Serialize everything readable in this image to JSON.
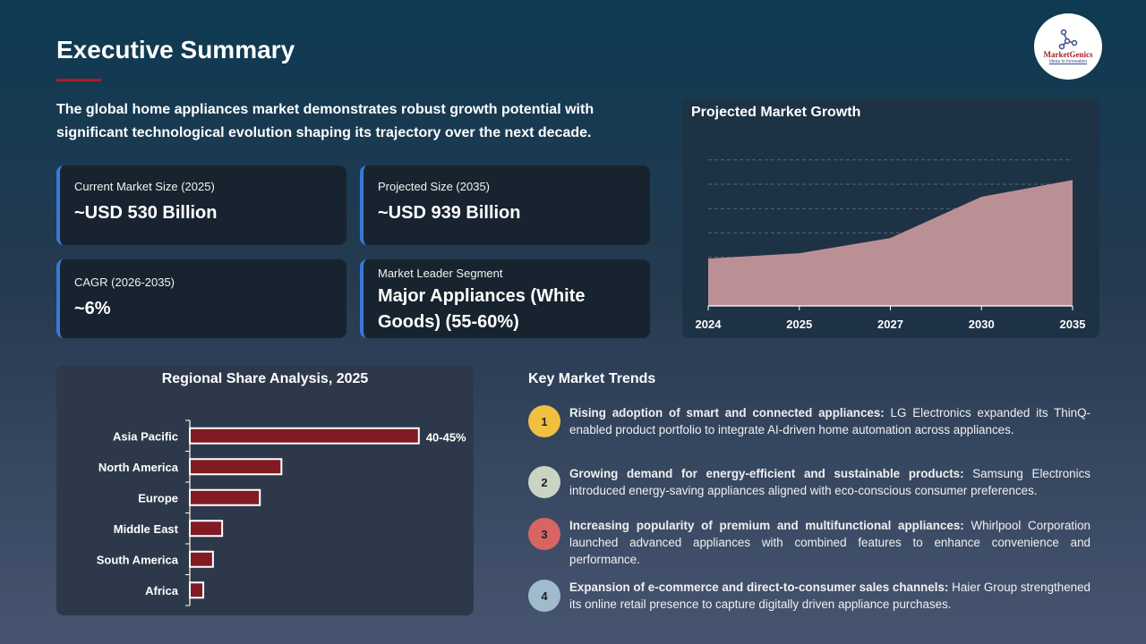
{
  "header": {
    "title": "Executive Summary",
    "intro": "The global home appliances market demonstrates robust growth potential with significant technological evolution shaping its trajectory over the next decade.",
    "logo": {
      "name": "MarketGenics",
      "tagline": "Ideas to Innovation"
    }
  },
  "cards": [
    {
      "label": "Current Market Size (2025)",
      "value": "~USD 530 Billion"
    },
    {
      "label": "Projected Size (2035)",
      "value": "~USD 939 Billion"
    },
    {
      "label": "CAGR (2026-2035)",
      "value": "~6%"
    },
    {
      "label": "Market Leader Segment",
      "value": "Major Appliances (White Goods) (55-60%)"
    }
  ],
  "trends_title": "Key Market Trends",
  "trends": [
    {
      "num": "1",
      "color": "#f0c040",
      "bold": "Rising adoption of smart and connected appliances:",
      "text": " LG Electronics expanded its ThinQ-enabled product portfolio to integrate AI-driven home automation across appliances."
    },
    {
      "num": "2",
      "color": "#c9d4c4",
      "bold": "Growing demand for energy-efficient and sustainable products:",
      "text": " Samsung Electronics introduced energy-saving appliances aligned with eco-conscious consumer preferences."
    },
    {
      "num": "3",
      "color": "#d86464",
      "bold": "Increasing popularity of premium and multifunctional appliances:",
      "text": " Whirlpool Corporation launched advanced appliances with combined features to enhance convenience and performance."
    },
    {
      "num": "4",
      "color": "#9fbbcc",
      "bold": "Expansion of e-commerce and direct-to-consumer sales channels:",
      "text": " Haier Group strengthened its online retail presence to capture digitally driven appliance purchases."
    }
  ],
  "chart_data": [
    {
      "type": "area",
      "title": "Projected Market Growth",
      "categories": [
        "2024",
        "2025",
        "2027",
        "2030",
        "2035"
      ],
      "values": [
        500,
        530,
        615,
        845,
        939
      ],
      "unit": "USD Billion",
      "ylim": [
        236,
        1050
      ],
      "grid": true,
      "gridlines": 6,
      "color": "#bb9095"
    },
    {
      "type": "bar",
      "orientation": "horizontal",
      "title": "Regional Share Analysis, 2025",
      "categories": [
        "Asia Pacific",
        "North America",
        "Europe",
        "Middle East",
        "South America",
        "Africa"
      ],
      "values": [
        42.5,
        17,
        13,
        6,
        4.3,
        2.5
      ],
      "unit": "%",
      "data_labels": [
        "40-45%",
        "",
        "",
        "",
        "",
        ""
      ],
      "xlim": [
        0,
        52
      ],
      "color": "#821a24"
    }
  ]
}
